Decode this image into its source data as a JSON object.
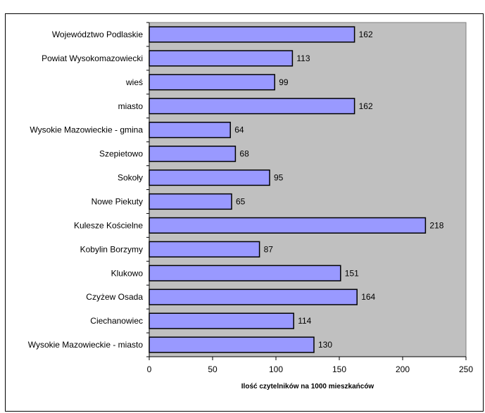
{
  "chart_data": {
    "type": "bar",
    "orientation": "horizontal",
    "categories": [
      "Województwo Podlaskie",
      "Powiat Wysokomazowiecki",
      "wieś",
      "miasto",
      "Wysokie Mazowieckie - gmina",
      "Szepietowo",
      "Sokoły",
      "Nowe Piekuty",
      "Kulesze Kościelne",
      "Kobylin Borzymy",
      "Klukowo",
      "Czyżew Osada",
      "Ciechanowiec",
      "Wysokie Mazowieckie - miasto"
    ],
    "values": [
      162,
      113,
      99,
      162,
      64,
      68,
      95,
      65,
      218,
      87,
      151,
      164,
      114,
      130
    ],
    "xlabel": "Ilość czytelników na 1000 mieszkańców",
    "xlim": [
      0,
      250
    ],
    "xticks": [
      0,
      50,
      100,
      150,
      200,
      250
    ],
    "grid": false,
    "legend": "none",
    "colors": {
      "bar_fill": "#9999ff",
      "bar_stroke": "#000000",
      "plot_bg": "#c0c0c0"
    }
  }
}
